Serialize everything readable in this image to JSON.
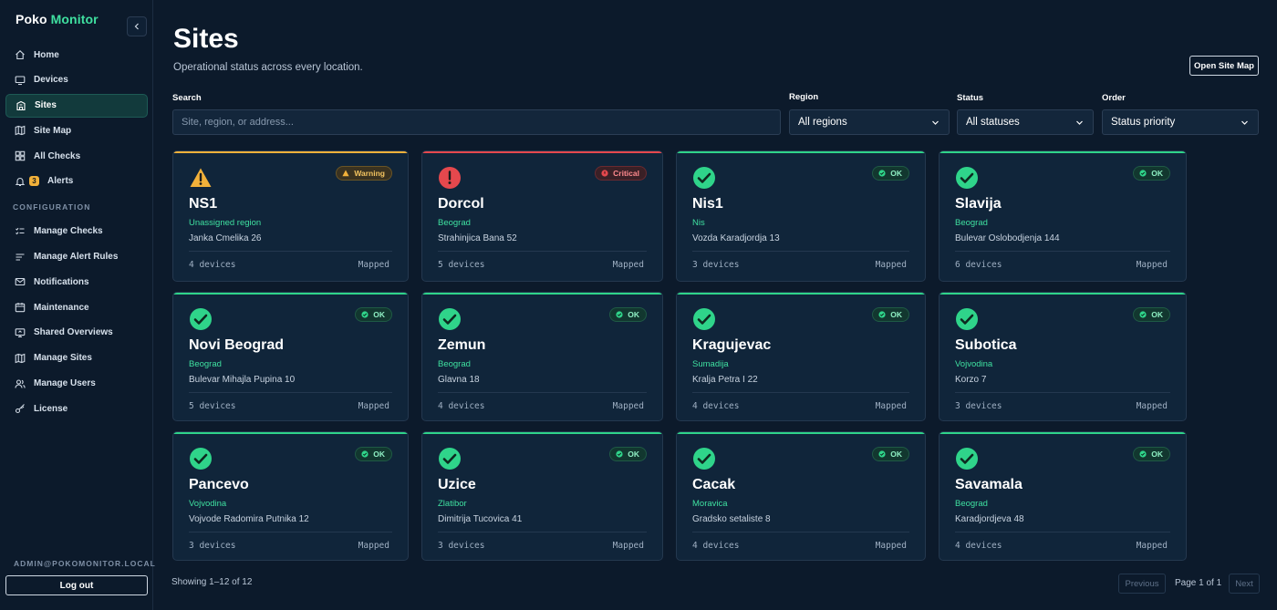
{
  "brand": {
    "part1": "Poko",
    "part2": "Monitor"
  },
  "sidebar": {
    "items": [
      {
        "label": "Home",
        "icon": "home-icon"
      },
      {
        "label": "Devices",
        "icon": "monitor-icon"
      },
      {
        "label": "Sites",
        "icon": "building-icon",
        "active": true
      },
      {
        "label": "Site Map",
        "icon": "map-icon"
      },
      {
        "label": "All Checks",
        "icon": "grid-icon"
      },
      {
        "label": "Alerts",
        "icon": "bell-icon",
        "badge": "3"
      }
    ],
    "section_label": "CONFIGURATION",
    "config_items": [
      {
        "label": "Manage Checks",
        "icon": "checklist-icon"
      },
      {
        "label": "Manage Alert Rules",
        "icon": "rules-icon"
      },
      {
        "label": "Notifications",
        "icon": "mail-icon"
      },
      {
        "label": "Maintenance",
        "icon": "calendar-icon"
      },
      {
        "label": "Shared Overviews",
        "icon": "share-screen-icon"
      },
      {
        "label": "Manage Sites",
        "icon": "map-icon"
      },
      {
        "label": "Manage Users",
        "icon": "users-icon"
      },
      {
        "label": "License",
        "icon": "key-icon"
      }
    ],
    "user_email": "ADMIN@POKOMONITOR.LOCAL",
    "logout_label": "Log out"
  },
  "header": {
    "title": "Sites",
    "subtitle": "Operational status across every location.",
    "open_map_label": "Open Site Map"
  },
  "filters": {
    "search_label": "Search",
    "search_placeholder": "Site, region, or address...",
    "region_label": "Region",
    "region_value": "All regions",
    "status_label": "Status",
    "status_value": "All statuses",
    "order_label": "Order",
    "order_value": "Status priority"
  },
  "colors": {
    "ok": "#2fd48a",
    "warning": "#f2b13a",
    "critical": "#e5484d",
    "accent": "#3fe0a0"
  },
  "sites": [
    {
      "name": "NS1",
      "region": "Unassigned region",
      "address": "Janka Cmelika 26",
      "devices": "4 devices",
      "mapped": "Mapped",
      "status": "warning",
      "badge": "Warning"
    },
    {
      "name": "Dorcol",
      "region": "Beograd",
      "address": "Strahinjica Bana 52",
      "devices": "5 devices",
      "mapped": "Mapped",
      "status": "critical",
      "badge": "Critical"
    },
    {
      "name": "Nis1",
      "region": "Nis",
      "address": "Vozda Karadjordja 13",
      "devices": "3 devices",
      "mapped": "Mapped",
      "status": "ok",
      "badge": "OK"
    },
    {
      "name": "Slavija",
      "region": "Beograd",
      "address": "Bulevar Oslobodjenja 144",
      "devices": "6 devices",
      "mapped": "Mapped",
      "status": "ok",
      "badge": "OK"
    },
    {
      "name": "Novi Beograd",
      "region": "Beograd",
      "address": "Bulevar Mihajla Pupina 10",
      "devices": "5 devices",
      "mapped": "Mapped",
      "status": "ok",
      "badge": "OK"
    },
    {
      "name": "Zemun",
      "region": "Beograd",
      "address": "Glavna 18",
      "devices": "4 devices",
      "mapped": "Mapped",
      "status": "ok",
      "badge": "OK"
    },
    {
      "name": "Kragujevac",
      "region": "Sumadija",
      "address": "Kralja Petra I 22",
      "devices": "4 devices",
      "mapped": "Mapped",
      "status": "ok",
      "badge": "OK"
    },
    {
      "name": "Subotica",
      "region": "Vojvodina",
      "address": "Korzo 7",
      "devices": "3 devices",
      "mapped": "Mapped",
      "status": "ok",
      "badge": "OK"
    },
    {
      "name": "Pancevo",
      "region": "Vojvodina",
      "address": "Vojvode Radomira Putnika 12",
      "devices": "3 devices",
      "mapped": "Mapped",
      "status": "ok",
      "badge": "OK"
    },
    {
      "name": "Uzice",
      "region": "Zlatibor",
      "address": "Dimitrija Tucovica 41",
      "devices": "3 devices",
      "mapped": "Mapped",
      "status": "ok",
      "badge": "OK"
    },
    {
      "name": "Cacak",
      "region": "Moravica",
      "address": "Gradsko setaliste 8",
      "devices": "4 devices",
      "mapped": "Mapped",
      "status": "ok",
      "badge": "OK"
    },
    {
      "name": "Savamala",
      "region": "Beograd",
      "address": "Karadjordjeva 48",
      "devices": "4 devices",
      "mapped": "Mapped",
      "status": "ok",
      "badge": "OK"
    }
  ],
  "pagination": {
    "showing": "Showing 1–12 of 12",
    "previous_label": "Previous",
    "page_text": "Page 1 of 1",
    "next_label": "Next"
  }
}
